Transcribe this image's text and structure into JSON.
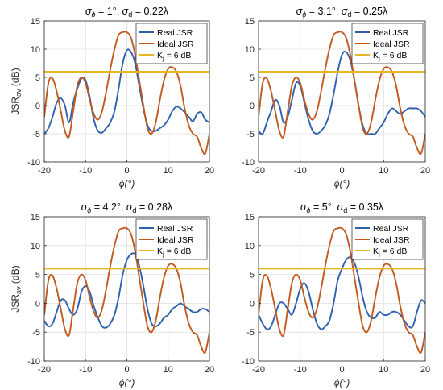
{
  "chart_data": [
    {
      "type": "line",
      "title_parts": {
        "sym": "σ",
        "sub_phi": "ϕ",
        "val1": " = 1°, ",
        "sub_d": "d",
        "val2": " = 0.22λ"
      },
      "xlabel": "ϕ(°)",
      "ylabel": "JSR",
      "ylabel_sub": "av",
      "ylabel_unit": " (dB)",
      "xlim": [
        -20,
        20
      ],
      "ylim": [
        -10,
        15
      ],
      "xticks": [
        -20,
        -10,
        0,
        10,
        20
      ],
      "yticks": [
        -10,
        -5,
        0,
        5,
        10,
        15
      ],
      "legend": {
        "position": "top-right"
      },
      "series": [
        {
          "name": "Real JSR",
          "color": "#2e60b0",
          "x": [
            -20,
            -19,
            -18,
            -17,
            -16,
            -15,
            -14,
            -13,
            -12,
            -11,
            -10,
            -9,
            -8,
            -7,
            -6,
            -5,
            -4,
            -3,
            -2,
            -1,
            0,
            1,
            2,
            3,
            4,
            5,
            6,
            7,
            8,
            9,
            10,
            11,
            12,
            13,
            14,
            15,
            16,
            17,
            18,
            19,
            20
          ],
          "y": [
            -5,
            -4,
            -2,
            0.5,
            1.3,
            0,
            -3,
            0.5,
            3,
            4.8,
            4.5,
            1.5,
            -2.5,
            -4.5,
            -4.8,
            -4,
            -3,
            -1,
            3,
            7.5,
            9.8,
            9.5,
            7.5,
            3.5,
            -0.5,
            -3.5,
            -4.5,
            -4.5,
            -4,
            -3.5,
            -2.5,
            -1,
            -0.2,
            -0.5,
            -1.2,
            -2,
            -2.8,
            -1.5,
            -1.2,
            -2.5,
            -3
          ]
        },
        {
          "name": "Ideal JSR",
          "color": "#c2591e",
          "x": [
            -20,
            -19,
            -18,
            -17,
            -16,
            -15,
            -14,
            -13,
            -12,
            -11,
            -10,
            -9,
            -8,
            -7,
            -6,
            -5,
            -4,
            -3,
            -2,
            -1,
            0,
            1,
            2,
            3,
            4,
            5,
            6,
            7,
            8,
            9,
            10,
            11,
            12,
            13,
            14,
            15,
            16,
            17,
            18,
            19,
            20
          ],
          "y": [
            -2,
            4,
            4.8,
            2.5,
            -1,
            -4.5,
            -5.5,
            -1,
            3.5,
            5,
            4,
            1,
            -1.5,
            -2.5,
            -1,
            2.5,
            6.5,
            10,
            12.5,
            13,
            13,
            12,
            9,
            4.5,
            0,
            -4,
            -5,
            -3,
            1,
            4.5,
            6.5,
            6.8,
            6,
            3.5,
            -0.5,
            -3.5,
            -5,
            -5.5,
            -7.5,
            -8.5,
            -5
          ]
        },
        {
          "name": "K",
          "name_sub": "j",
          "name_rest": " = 6 dB",
          "color": "#e3b820",
          "x": [
            -20,
            20
          ],
          "y": [
            6,
            6
          ]
        }
      ]
    },
    {
      "type": "line",
      "title_parts": {
        "sym": "σ",
        "sub_phi": "ϕ",
        "val1": " = 3.1°, ",
        "sub_d": "d",
        "val2": " = 0.25λ"
      },
      "xlabel": "ϕ(°)",
      "ylabel": "",
      "ylabel_sub": "",
      "ylabel_unit": "",
      "xlim": [
        -20,
        20
      ],
      "ylim": [
        -10,
        15
      ],
      "xticks": [
        -20,
        -10,
        0,
        10,
        20
      ],
      "yticks": [
        -10,
        -5,
        0,
        5,
        10,
        15
      ],
      "legend": {
        "position": "top-right"
      },
      "series": [
        {
          "name": "Real JSR",
          "color": "#2e60b0",
          "x": [
            -20,
            -19,
            -18,
            -17,
            -16,
            -15,
            -14,
            -13,
            -12,
            -11,
            -10,
            -9,
            -8,
            -7,
            -6,
            -5,
            -4,
            -3,
            -2,
            -1,
            0,
            1,
            2,
            3,
            4,
            5,
            6,
            7,
            8,
            9,
            10,
            11,
            12,
            13,
            14,
            15,
            16,
            17,
            18,
            19,
            20
          ],
          "y": [
            -4.5,
            -5,
            -3,
            -1,
            1,
            0,
            -3,
            -2,
            1,
            4,
            3.5,
            0.5,
            -2.5,
            -4.5,
            -5,
            -4.5,
            -3.5,
            -1.5,
            2,
            6,
            9,
            9.5,
            8,
            4.5,
            0,
            -3.5,
            -5,
            -5,
            -5,
            -4,
            -3,
            -1.5,
            -0.5,
            -1,
            -1.5,
            -1,
            -0.5,
            -0.5,
            -0.5,
            -1,
            -2
          ]
        },
        {
          "name": "Ideal JSR",
          "color": "#c2591e",
          "x": [
            -20,
            -19,
            -18,
            -17,
            -16,
            -15,
            -14,
            -13,
            -12,
            -11,
            -10,
            -9,
            -8,
            -7,
            -6,
            -5,
            -4,
            -3,
            -2,
            -1,
            0,
            1,
            2,
            3,
            4,
            5,
            6,
            7,
            8,
            9,
            10,
            11,
            12,
            13,
            14,
            15,
            16,
            17,
            18,
            19,
            20
          ],
          "y": [
            -2,
            4,
            4.8,
            2.5,
            -1,
            -4.5,
            -5.5,
            -1,
            3.5,
            5,
            4,
            1,
            -1.5,
            -2.5,
            -1,
            2.5,
            6.5,
            10,
            12.5,
            13,
            13,
            12,
            9,
            4.5,
            0,
            -4,
            -5,
            -3,
            1,
            4.5,
            6.5,
            6.8,
            6,
            3.5,
            -0.5,
            -3.5,
            -5,
            -5.5,
            -7.5,
            -8.5,
            -5
          ]
        },
        {
          "name": "K",
          "name_sub": "j",
          "name_rest": " = 6 dB",
          "color": "#e3b820",
          "x": [
            -20,
            20
          ],
          "y": [
            6,
            6
          ]
        }
      ]
    },
    {
      "type": "line",
      "title_parts": {
        "sym": "σ",
        "sub_phi": "ϕ",
        "val1": " = 4.2°, ",
        "sub_d": "d",
        "val2": " = 0.28λ"
      },
      "xlabel": "ϕ(°)",
      "ylabel": "JSR",
      "ylabel_sub": "av",
      "ylabel_unit": " (dB)",
      "xlim": [
        -20,
        20
      ],
      "ylim": [
        -10,
        15
      ],
      "xticks": [
        -20,
        -10,
        0,
        10,
        20
      ],
      "yticks": [
        -10,
        -5,
        0,
        5,
        10,
        15
      ],
      "legend": {
        "position": "top-right"
      },
      "series": [
        {
          "name": "Real JSR",
          "color": "#2e60b0",
          "x": [
            -20,
            -19,
            -18,
            -17,
            -16,
            -15,
            -14,
            -13,
            -12,
            -11,
            -10,
            -9,
            -8,
            -7,
            -6,
            -5,
            -4,
            -3,
            -2,
            -1,
            0,
            1,
            2,
            3,
            4,
            5,
            6,
            7,
            8,
            9,
            10,
            11,
            12,
            13,
            14,
            15,
            16,
            17,
            18,
            19,
            20
          ],
          "y": [
            -3,
            -4,
            -3.5,
            -1.5,
            0.5,
            0.5,
            -1,
            -2,
            -1,
            2,
            3,
            2,
            -0.5,
            -2.5,
            -4,
            -4.2,
            -3.5,
            -2,
            1,
            5,
            7.5,
            8.5,
            8.5,
            6.5,
            3,
            -1,
            -3.5,
            -4,
            -3.5,
            -2.5,
            -2,
            -1,
            -0.5,
            0,
            -0.5,
            -1,
            -1.5,
            -1.5,
            -1,
            -1,
            -1.5
          ]
        },
        {
          "name": "Ideal JSR",
          "color": "#c2591e",
          "x": [
            -20,
            -19,
            -18,
            -17,
            -16,
            -15,
            -14,
            -13,
            -12,
            -11,
            -10,
            -9,
            -8,
            -7,
            -6,
            -5,
            -4,
            -3,
            -2,
            -1,
            0,
            1,
            2,
            3,
            4,
            5,
            6,
            7,
            8,
            9,
            10,
            11,
            12,
            13,
            14,
            15,
            16,
            17,
            18,
            19,
            20
          ],
          "y": [
            -2,
            4,
            4.8,
            2.5,
            -1,
            -4.5,
            -5.5,
            -1,
            3.5,
            5,
            4,
            1,
            -1.5,
            -2.5,
            -1,
            2.5,
            6.5,
            10,
            12.5,
            13,
            13,
            12,
            9,
            4.5,
            0,
            -4,
            -5,
            -3,
            1,
            4.5,
            6.5,
            6.8,
            6,
            3.5,
            -0.5,
            -3.5,
            -5,
            -5.5,
            -7.5,
            -8.5,
            -5
          ]
        },
        {
          "name": "K",
          "name_sub": "j",
          "name_rest": " = 6 dB",
          "color": "#e3b820",
          "x": [
            -20,
            20
          ],
          "y": [
            6,
            6
          ]
        }
      ]
    },
    {
      "type": "line",
      "title_parts": {
        "sym": "σ",
        "sub_phi": "ϕ",
        "val1": " = 5°, ",
        "sub_d": "d",
        "val2": " = 0.35λ"
      },
      "xlabel": "ϕ(°)",
      "ylabel": "",
      "ylabel_sub": "",
      "ylabel_unit": "",
      "xlim": [
        -20,
        20
      ],
      "ylim": [
        -10,
        15
      ],
      "xticks": [
        -20,
        -10,
        0,
        10,
        20
      ],
      "yticks": [
        -10,
        -5,
        0,
        5,
        10,
        15
      ],
      "legend": {
        "position": "top-right"
      },
      "series": [
        {
          "name": "Real JSR",
          "color": "#2e60b0",
          "x": [
            -20,
            -19,
            -18,
            -17,
            -16,
            -15,
            -14,
            -13,
            -12,
            -11,
            -10,
            -9,
            -8,
            -7,
            -6,
            -5,
            -4,
            -3,
            -2,
            -1,
            0,
            1,
            2,
            3,
            4,
            5,
            6,
            7,
            8,
            9,
            10,
            11,
            12,
            13,
            14,
            15,
            16,
            17,
            18,
            19,
            20
          ],
          "y": [
            -2,
            -3.5,
            -4.5,
            -4,
            -2,
            0,
            0,
            -1,
            -2,
            0,
            2.5,
            3.5,
            2,
            -1,
            -3.5,
            -4.5,
            -4,
            -3,
            0,
            4,
            6,
            7.5,
            8,
            7,
            4.5,
            1,
            -1.5,
            -2.5,
            -2.5,
            -1.5,
            -2,
            -2,
            -1.5,
            -1.5,
            -2,
            -3,
            -4,
            -4,
            -1.5,
            0.5,
            0
          ]
        },
        {
          "name": "Ideal JSR",
          "color": "#c2591e",
          "x": [
            -20,
            -19,
            -18,
            -17,
            -16,
            -15,
            -14,
            -13,
            -12,
            -11,
            -10,
            -9,
            -8,
            -7,
            -6,
            -5,
            -4,
            -3,
            -2,
            -1,
            0,
            1,
            2,
            3,
            4,
            5,
            6,
            7,
            8,
            9,
            10,
            11,
            12,
            13,
            14,
            15,
            16,
            17,
            18,
            19,
            20
          ],
          "y": [
            -2,
            4,
            4.8,
            2.5,
            -1,
            -4.5,
            -5.5,
            -1,
            3.5,
            5,
            4,
            1,
            -1.5,
            -2.5,
            -1,
            2.5,
            6.5,
            10,
            12.5,
            13,
            13,
            12,
            9,
            4.5,
            0,
            -4,
            -5,
            -3,
            1,
            4.5,
            6.5,
            6.8,
            6,
            3.5,
            -0.5,
            -3.5,
            -5,
            -5.5,
            -7.5,
            -8.5,
            -5
          ]
        },
        {
          "name": "K",
          "name_sub": "j",
          "name_rest": " = 6 dB",
          "color": "#e3b820",
          "x": [
            -20,
            20
          ],
          "y": [
            6,
            6
          ]
        }
      ]
    }
  ]
}
